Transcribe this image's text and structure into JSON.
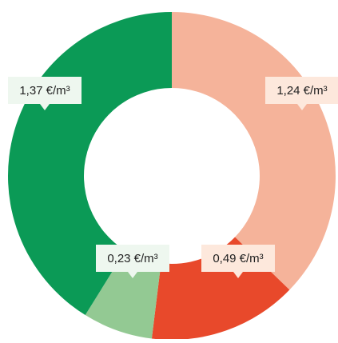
{
  "chart_data": {
    "type": "donut",
    "values": [
      1.24,
      0.49,
      0.23,
      1.37
    ],
    "value_labels": [
      "1,24 €/m³",
      "0,49 €/m³",
      "0,23 €/m³",
      "1,37 €/m³"
    ],
    "colors": [
      "#f5b39a",
      "#e8492b",
      "#93c993",
      "#0b9a56"
    ]
  }
}
